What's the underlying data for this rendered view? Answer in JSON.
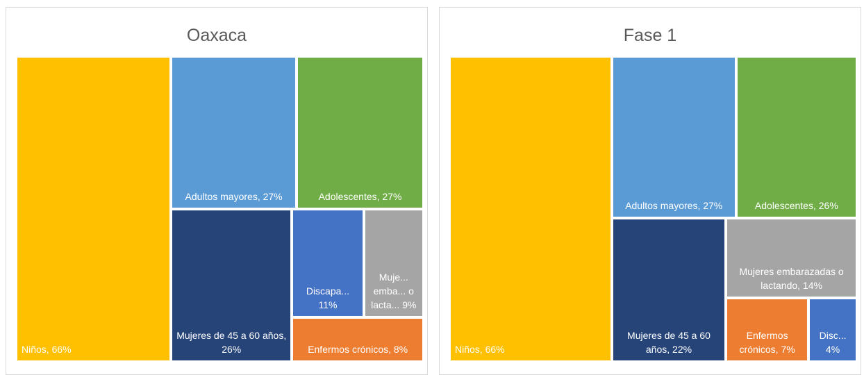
{
  "chart_data": [
    {
      "type": "treemap",
      "title": "Oaxaca",
      "values": [
        66,
        27,
        27,
        26,
        11,
        9,
        8
      ],
      "value_labels": [
        "Niños, 66%",
        "Adultos mayores, 27%",
        "Adolescentes, 27%",
        "Mujeres de 45 a 60 años, 26%",
        "Discapa... 11%",
        "Muje... emba... o lacta... 9%",
        "Enfermos crónicos, 8%"
      ],
      "colors": [
        "#FFC000",
        "#5B9BD5",
        "#70AD47",
        "#264478",
        "#4472C4",
        "#A5A5A5",
        "#ED7D31"
      ]
    },
    {
      "type": "treemap",
      "title": "Fase 1",
      "values": [
        66,
        27,
        26,
        22,
        14,
        7,
        4
      ],
      "value_labels": [
        "Niños, 66%",
        "Adultos mayores, 27%",
        "Adolescentes, 26%",
        "Mujeres de 45 a 60 años, 22%",
        "Mujeres embarazadas o lactando, 14%",
        "Enfermos crónicos, 7%",
        "Disc... 4%"
      ],
      "colors": [
        "#FFC000",
        "#5B9BD5",
        "#70AD47",
        "#264478",
        "#A5A5A5",
        "#ED7D31",
        "#4472C4"
      ]
    }
  ]
}
